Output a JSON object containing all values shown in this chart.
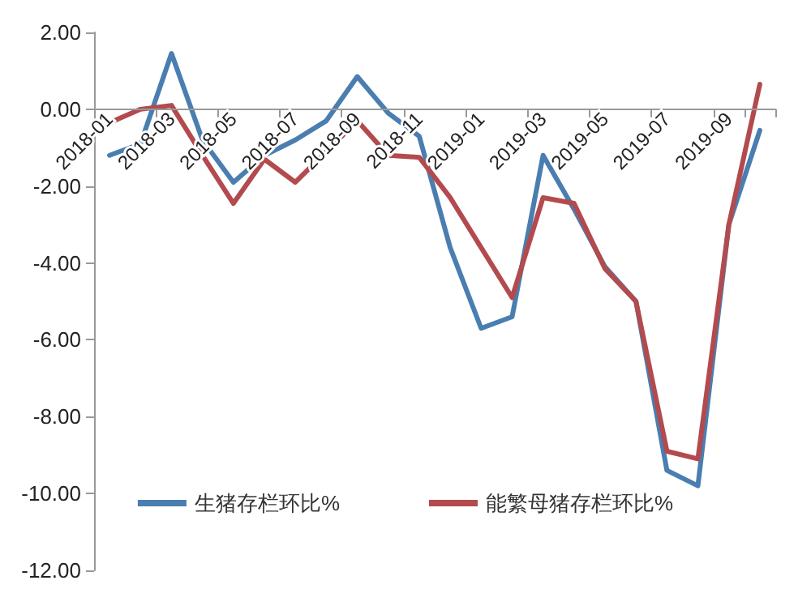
{
  "chart_data": {
    "type": "line",
    "categories": [
      "2018-01",
      null,
      "2018-03",
      null,
      "2018-05",
      null,
      "2018-07",
      null,
      "2018-09",
      null,
      "2018-11",
      null,
      "2019-01",
      null,
      "2019-03",
      null,
      "2019-05",
      null,
      "2019-07",
      null,
      "2019-09",
      null
    ],
    "series": [
      {
        "name": "生猪存栏环比%",
        "color": "#4a7eb0",
        "values": [
          -1.2,
          -0.9,
          1.45,
          -0.8,
          -1.9,
          -1.2,
          -0.8,
          -0.3,
          0.85,
          -0.1,
          -0.7,
          -3.6,
          -5.7,
          -5.4,
          -1.2,
          -2.6,
          -4.1,
          -5.0,
          -9.4,
          -9.8,
          -3.0,
          -0.55
        ]
      },
      {
        "name": "能繁母猪存栏环比%",
        "color": "#b34a4e",
        "values": [
          -0.35,
          0.0,
          0.1,
          -1.2,
          -2.45,
          -1.3,
          -1.9,
          -1.1,
          -0.3,
          -1.2,
          -1.25,
          -2.3,
          -3.6,
          -4.9,
          -2.3,
          -2.45,
          -4.15,
          -5.0,
          -8.9,
          -9.1,
          -3.0,
          0.65
        ]
      }
    ],
    "ylim": [
      -12,
      2
    ],
    "yticks": [
      {
        "value": -12,
        "label": "-12.00"
      },
      {
        "value": -10,
        "label": "-10.00"
      },
      {
        "value": -8,
        "label": "-8.00"
      },
      {
        "value": -6,
        "label": "-6.00"
      },
      {
        "value": -4,
        "label": "-4.00"
      },
      {
        "value": -2,
        "label": "-2.00"
      },
      {
        "value": 0,
        "label": "0.00"
      },
      {
        "value": 2,
        "label": "2.00"
      }
    ],
    "legend": "bottom",
    "marker": "none",
    "line_style": "solid"
  }
}
